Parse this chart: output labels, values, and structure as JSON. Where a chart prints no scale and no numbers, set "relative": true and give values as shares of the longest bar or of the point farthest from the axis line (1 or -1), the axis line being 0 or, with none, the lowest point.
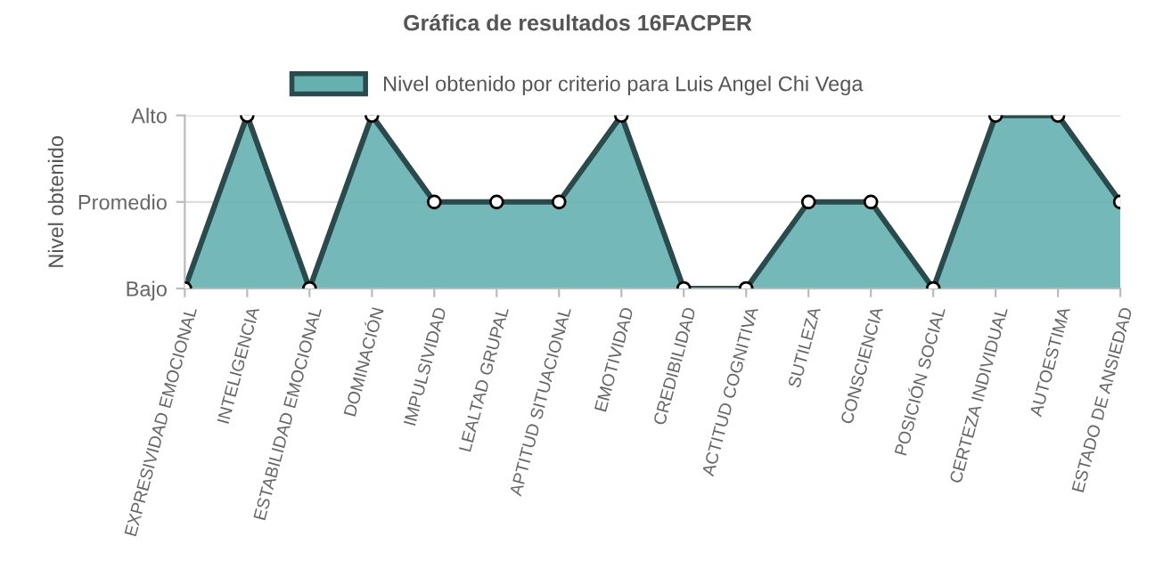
{
  "chart_data": {
    "type": "area",
    "title": "Gráfica de resultados 16FACPER",
    "ylabel": "Nivel obtenido",
    "categories": [
      "EXPRESIVIDAD EMOCIONAL",
      "INTELIGENCIA",
      "ESTABILIDAD EMOCIONAL",
      "DOMINACIÓN",
      "IMPULSIVIDAD",
      "LEALTAD GRUPAL",
      "APTITUD SITUACIONAL",
      "EMOTIVIDAD",
      "CREDIBILIDAD",
      "ACTITUD COGNITIVA",
      "SUTILEZA",
      "CONSCIENCIA",
      "POSICIÓN SOCIAL",
      "CERTEZA INDIVIDUAL",
      "AUTOESTIMA",
      "ESTADO DE ANSIEDAD"
    ],
    "series": [
      {
        "name": "Nivel obtenido por criterio para Luis Angel Chi Vega",
        "color": "#66b0b2",
        "values": [
          0,
          1,
          0,
          1,
          0.5,
          0.5,
          0.5,
          1,
          0,
          0,
          0.5,
          0.5,
          0,
          1,
          1,
          0.5
        ]
      }
    ],
    "relative": true,
    "y_categories": [
      "Alto",
      "Promedio",
      "Bajo"
    ],
    "ref_lines": [
      {
        "axis": "y",
        "value": 1,
        "color": "#dddddd"
      },
      {
        "axis": "y",
        "value": 0.5,
        "color": "#dddddd"
      }
    ],
    "legend": "top",
    "marker": "circle",
    "line_style": "solid"
  }
}
